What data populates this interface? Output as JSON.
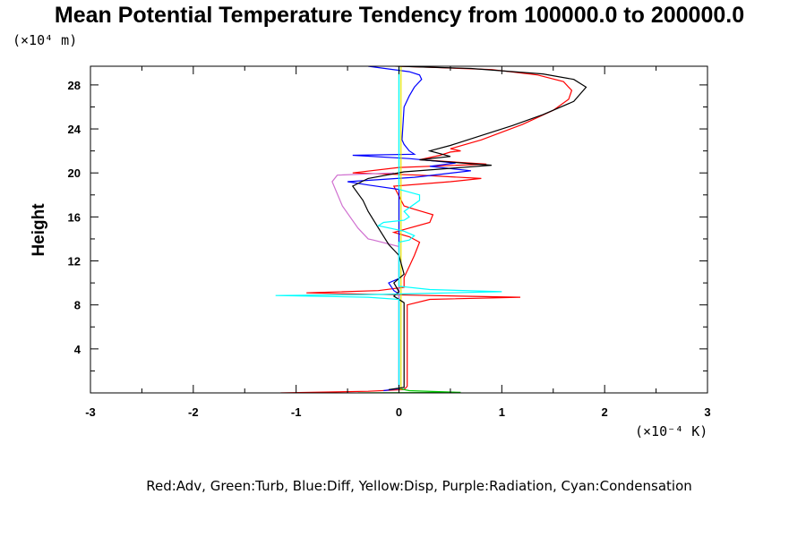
{
  "chart_data": {
    "type": "line",
    "title": "Mean Potential Temperature Tendency from 100000.0 to 200000.0",
    "x_unit": "(×10⁻⁴ K)",
    "y_unit": "(×10⁴ m)",
    "ylabel": "Height",
    "caption": "Red:Adv, Green:Turb, Blue:Diff, Yellow:Disp, Purple:Radiation, Cyan:Condensation",
    "xlim": [
      -3,
      3
    ],
    "ylim": [
      0,
      29.7
    ],
    "x_ticks": [
      "-3",
      "-2",
      "-1",
      "0",
      "1",
      "2",
      "3"
    ],
    "y_ticks": [
      "4",
      "8",
      "12",
      "16",
      "20",
      "24",
      "28"
    ],
    "series": [
      {
        "color": "#ff0000",
        "points": [
          [
            -1.15,
            0.0
          ],
          [
            -0.3,
            0.15
          ],
          [
            0.05,
            0.3
          ],
          [
            0.08,
            0.6
          ],
          [
            0.08,
            8.0
          ],
          [
            0.3,
            8.5
          ],
          [
            1.18,
            8.7
          ],
          [
            0.3,
            8.85
          ],
          [
            -0.9,
            9.1
          ],
          [
            -0.2,
            9.3
          ],
          [
            0.05,
            9.6
          ],
          [
            0.05,
            10.5
          ],
          [
            0.1,
            11.5
          ],
          [
            0.15,
            12.5
          ],
          [
            0.2,
            13.7
          ],
          [
            0.1,
            14.2
          ],
          [
            -0.05,
            14.6
          ],
          [
            0.3,
            15.5
          ],
          [
            0.33,
            16.2
          ],
          [
            0.15,
            16.7
          ],
          [
            0.05,
            17.0
          ],
          [
            -0.05,
            18.8
          ],
          [
            0.5,
            19.2
          ],
          [
            0.8,
            19.5
          ],
          [
            0.2,
            19.8
          ],
          [
            -0.45,
            20.0
          ],
          [
            0.0,
            20.5
          ],
          [
            0.85,
            20.8
          ],
          [
            0.2,
            21.2
          ],
          [
            0.4,
            21.6
          ],
          [
            0.5,
            21.9
          ],
          [
            0.6,
            22.0
          ],
          [
            0.5,
            22.2
          ],
          [
            0.8,
            23.0
          ],
          [
            1.2,
            24.4
          ],
          [
            1.5,
            25.7
          ],
          [
            1.65,
            26.7
          ],
          [
            1.68,
            27.5
          ],
          [
            1.6,
            28.3
          ],
          [
            1.35,
            28.9
          ],
          [
            0.9,
            29.4
          ],
          [
            0.3,
            29.6
          ],
          [
            -0.35,
            29.8
          ]
        ]
      },
      {
        "color": "#00c800",
        "points": [
          [
            -0.4,
            0.0
          ],
          [
            0.6,
            0.05
          ],
          [
            0.1,
            0.2
          ],
          [
            0.0,
            0.4
          ],
          [
            0.0,
            29.8
          ]
        ]
      },
      {
        "color": "#0000ff",
        "points": [
          [
            -0.15,
            0.2
          ],
          [
            0.0,
            0.4
          ],
          [
            0.0,
            9.0
          ],
          [
            -0.05,
            9.3
          ],
          [
            -0.1,
            10.0
          ],
          [
            0.0,
            10.4
          ],
          [
            0.0,
            18.5
          ],
          [
            -0.3,
            18.9
          ],
          [
            -0.5,
            19.2
          ],
          [
            0.15,
            19.6
          ],
          [
            0.7,
            20.2
          ],
          [
            0.3,
            20.6
          ],
          [
            0.55,
            20.9
          ],
          [
            0.1,
            21.3
          ],
          [
            -0.45,
            21.6
          ],
          [
            0.15,
            21.7
          ],
          [
            0.1,
            22.0
          ],
          [
            0.05,
            22.6
          ],
          [
            0.03,
            23.0
          ],
          [
            0.05,
            26.0
          ],
          [
            0.1,
            27.0
          ],
          [
            0.15,
            27.8
          ],
          [
            0.22,
            28.5
          ],
          [
            0.2,
            28.9
          ],
          [
            0.1,
            29.2
          ],
          [
            -0.3,
            29.7
          ]
        ]
      },
      {
        "color": "#e8e800",
        "points": [
          [
            0.02,
            0.3
          ],
          [
            0.02,
            29.7
          ]
        ]
      },
      {
        "color": "#d070d0",
        "points": [
          [
            0.0,
            0.6
          ],
          [
            0.0,
            13.3
          ],
          [
            -0.25,
            13.9
          ],
          [
            -0.3,
            14.0
          ],
          [
            -0.4,
            15.0
          ],
          [
            -0.55,
            17.0
          ],
          [
            -0.65,
            19.2
          ],
          [
            -0.6,
            19.8
          ],
          [
            -0.05,
            20.0
          ]
        ]
      },
      {
        "color": "#000000",
        "points": [
          [
            -0.1,
            0.3
          ],
          [
            0.05,
            0.5
          ],
          [
            0.05,
            8.2
          ],
          [
            -0.05,
            8.8
          ],
          [
            0.0,
            9.2
          ],
          [
            -0.05,
            10.0
          ],
          [
            0.05,
            10.8
          ],
          [
            0.0,
            12.5
          ],
          [
            -0.1,
            13.5
          ],
          [
            -0.2,
            15.0
          ],
          [
            -0.3,
            16.5
          ],
          [
            -0.35,
            17.5
          ],
          [
            -0.45,
            18.8
          ],
          [
            -0.3,
            19.5
          ],
          [
            0.05,
            20.1
          ],
          [
            0.9,
            20.7
          ],
          [
            0.2,
            21.2
          ],
          [
            0.5,
            21.5
          ],
          [
            0.3,
            22.0
          ],
          [
            0.5,
            22.5
          ],
          [
            0.8,
            23.4
          ],
          [
            1.1,
            24.3
          ],
          [
            1.4,
            25.3
          ],
          [
            1.7,
            26.5
          ],
          [
            1.82,
            27.8
          ],
          [
            1.7,
            28.5
          ],
          [
            1.4,
            29.0
          ],
          [
            0.7,
            29.5
          ],
          [
            -0.35,
            29.8
          ]
        ]
      },
      {
        "color": "#00ffff",
        "points": [
          [
            0.0,
            0.2
          ],
          [
            0.0,
            8.5
          ],
          [
            -0.3,
            8.7
          ],
          [
            -1.2,
            8.85
          ],
          [
            -0.2,
            8.95
          ],
          [
            0.05,
            9.0
          ],
          [
            0.5,
            9.1
          ],
          [
            1.0,
            9.2
          ],
          [
            0.3,
            9.4
          ],
          [
            0.0,
            9.7
          ],
          [
            0.0,
            13.7
          ],
          [
            0.1,
            13.9
          ],
          [
            0.15,
            14.3
          ],
          [
            0.05,
            14.7
          ],
          [
            -0.2,
            15.2
          ],
          [
            -0.15,
            15.5
          ],
          [
            0.05,
            15.7
          ],
          [
            0.1,
            16.0
          ],
          [
            0.05,
            16.5
          ],
          [
            0.2,
            17.5
          ],
          [
            0.2,
            18.0
          ],
          [
            0.0,
            18.5
          ],
          [
            0.0,
            29.8
          ]
        ]
      }
    ]
  }
}
